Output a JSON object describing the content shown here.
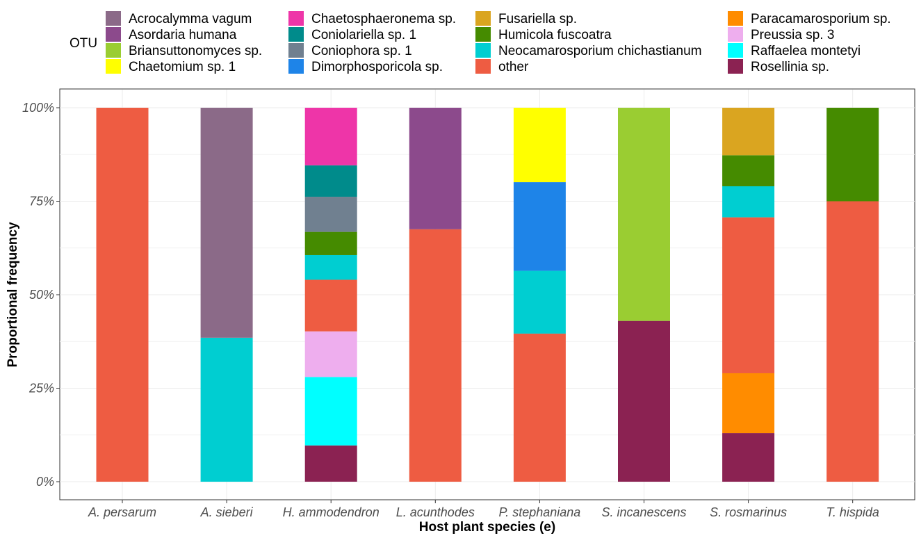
{
  "chart_data": {
    "type": "bar",
    "stacked": true,
    "title": "",
    "xlabel": "Host plant species (e)",
    "ylabel": "Proportional frequency",
    "ylim": [
      0,
      1
    ],
    "yticks": [
      {
        "value": 0,
        "label": "0%"
      },
      {
        "value": 0.25,
        "label": "25%"
      },
      {
        "value": 0.5,
        "label": "50%"
      },
      {
        "value": 0.75,
        "label": "75%"
      },
      {
        "value": 1,
        "label": "100%"
      }
    ],
    "grid": true,
    "legend": {
      "title": "OTU",
      "placement": "top",
      "entries": [
        {
          "name": "Acrocalymma vagum",
          "color": "#8B6A88"
        },
        {
          "name": "Asordaria humana",
          "color": "#8C4A8C"
        },
        {
          "name": "Briansuttonomyces sp.",
          "color": "#9ACD32"
        },
        {
          "name": "Chaetomium sp. 1",
          "color": "#FFFF00"
        },
        {
          "name": "Chaetosphaeronema sp.",
          "color": "#EE35A8"
        },
        {
          "name": "Coniolariella sp. 1",
          "color": "#008B8B"
        },
        {
          "name": "Coniophora  sp. 1",
          "color": "#708090"
        },
        {
          "name": "Dimorphosporicola sp.",
          "color": "#1E84E8"
        },
        {
          "name": "Fusariella sp.",
          "color": "#DAA520"
        },
        {
          "name": "Humicola fuscoatra",
          "color": "#458B00"
        },
        {
          "name": "Neocamarosporium chichastianum",
          "color": "#00CED1"
        },
        {
          "name": "other",
          "color": "#EE5C42"
        },
        {
          "name": "Paracamarosporium sp.",
          "color": "#FF8C00"
        },
        {
          "name": "Preussia sp. 3",
          "color": "#EEAEEE"
        },
        {
          "name": "Raffaelea montetyi",
          "color": "#00FFFF"
        },
        {
          "name": "Rosellinia sp.",
          "color": "#8B2252"
        }
      ]
    },
    "categories": [
      "A. persarum",
      "A. sieberi",
      "H. ammodendron",
      "L. acunthodes",
      "P. stephaniana",
      "S. incanescens",
      "S. rosmarinus",
      "T. hispida"
    ],
    "bars": [
      {
        "category": "A. persarum",
        "segments": [
          {
            "otu": "other",
            "value": 1.0
          }
        ]
      },
      {
        "category": "A. sieberi",
        "segments": [
          {
            "otu": "Neocamarosporium chichastianum",
            "value": 0.385
          },
          {
            "otu": "Acrocalymma vagum",
            "value": 0.615
          }
        ]
      },
      {
        "category": "H. ammodendron",
        "segments": [
          {
            "otu": "Rosellinia sp.",
            "value": 0.097
          },
          {
            "otu": "Raffaelea montetyi",
            "value": 0.183
          },
          {
            "otu": "Preussia sp. 3",
            "value": 0.122
          },
          {
            "otu": "other",
            "value": 0.138
          },
          {
            "otu": "Neocamarosporium chichastianum",
            "value": 0.066
          },
          {
            "otu": "Humicola fuscoatra",
            "value": 0.062
          },
          {
            "otu": "Coniophora  sp. 1",
            "value": 0.094
          },
          {
            "otu": "Coniolariella sp. 1",
            "value": 0.084
          },
          {
            "otu": "Chaetosphaeronema sp.",
            "value": 0.154
          }
        ]
      },
      {
        "category": "L. acunthodes",
        "segments": [
          {
            "otu": "other",
            "value": 0.675
          },
          {
            "otu": "Asordaria humana",
            "value": 0.325
          }
        ]
      },
      {
        "category": "P. stephaniana",
        "segments": [
          {
            "otu": "other",
            "value": 0.396
          },
          {
            "otu": "Neocamarosporium chichastianum",
            "value": 0.168
          },
          {
            "otu": "Dimorphosporicola sp.",
            "value": 0.237
          },
          {
            "otu": "Chaetomium sp. 1",
            "value": 0.199
          }
        ]
      },
      {
        "category": "S. incanescens",
        "segments": [
          {
            "otu": "Rosellinia sp.",
            "value": 0.43
          },
          {
            "otu": "Briansuttonomyces sp.",
            "value": 0.57
          }
        ]
      },
      {
        "category": "S. rosmarinus",
        "segments": [
          {
            "otu": "Rosellinia sp.",
            "value": 0.13
          },
          {
            "otu": "Paracamarosporium sp.",
            "value": 0.16
          },
          {
            "otu": "other",
            "value": 0.417
          },
          {
            "otu": "Neocamarosporium chichastianum",
            "value": 0.083
          },
          {
            "otu": "Humicola fuscoatra",
            "value": 0.083
          },
          {
            "otu": "Fusariella sp.",
            "value": 0.127
          }
        ]
      },
      {
        "category": "T. hispida",
        "segments": [
          {
            "otu": "other",
            "value": 0.75
          },
          {
            "otu": "Humicola fuscoatra",
            "value": 0.25
          }
        ]
      }
    ]
  }
}
